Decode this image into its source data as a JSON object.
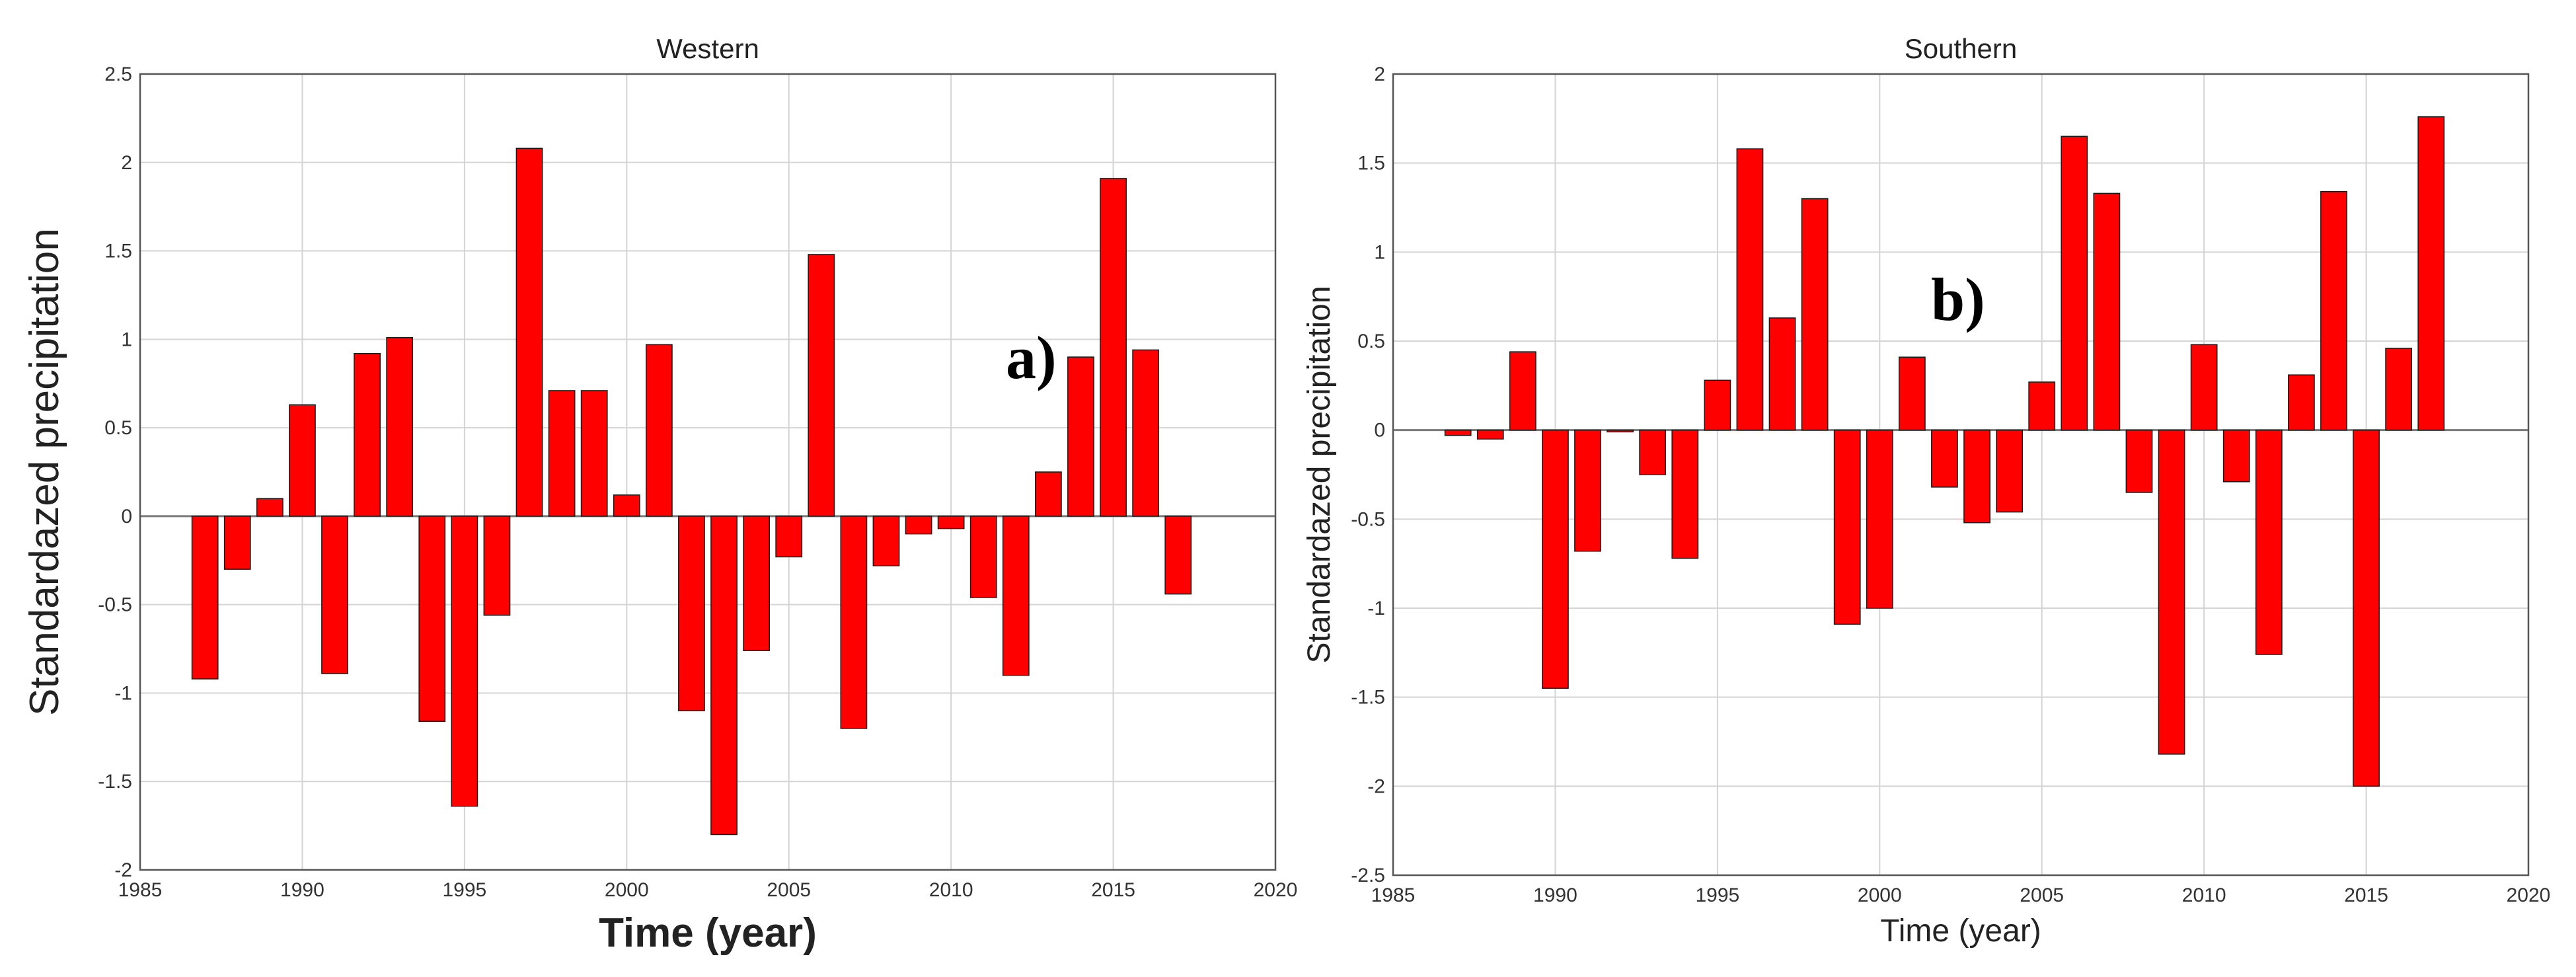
{
  "colors": {
    "bar": "#ff0000",
    "bar_edge": "#1a1a1a",
    "grid": "#d4d4d4",
    "axis": "#555555"
  },
  "chart_data": [
    {
      "type": "bar",
      "title": "Western",
      "xlabel": "Time (year)",
      "ylabel": "Standardazed precipitation",
      "panel_tag": "a)",
      "xlim": [
        1985,
        2020
      ],
      "ylim": [
        -2,
        2.5
      ],
      "xticks": [
        1985,
        1990,
        1995,
        2000,
        2005,
        2010,
        2015,
        2020
      ],
      "yticks": [
        -2,
        -1.5,
        -1,
        -0.5,
        0,
        0.5,
        1,
        1.5,
        2,
        2.5
      ],
      "xtick_labels": [
        "1985",
        "1990",
        "1995",
        "2000",
        "2005",
        "2010",
        "2015",
        "2020"
      ],
      "ytick_labels": [
        "-2",
        "-1.5",
        "-1",
        "-0.5",
        "0",
        "0.5",
        "1",
        "1.5",
        "2",
        "2.5"
      ],
      "grid": true,
      "x": [
        1987,
        1988,
        1989,
        1990,
        1991,
        1992,
        1993,
        1994,
        1995,
        1996,
        1997,
        1998,
        1999,
        2000,
        2001,
        2002,
        2003,
        2004,
        2005,
        2006,
        2007,
        2008,
        2009,
        2010,
        2011,
        2012,
        2013,
        2014,
        2015,
        2016,
        2017
      ],
      "values": [
        -0.92,
        -0.3,
        0.1,
        0.63,
        -0.89,
        0.92,
        1.01,
        -1.16,
        -1.64,
        -0.56,
        2.08,
        0.71,
        0.71,
        0.12,
        0.97,
        -1.1,
        -1.8,
        -0.76,
        -0.23,
        1.48,
        -1.2,
        -0.28,
        -0.1,
        -0.07,
        -0.46,
        -0.9,
        0.25,
        0.9,
        1.91,
        0.94,
        -0.44
      ]
    },
    {
      "type": "bar",
      "title": "Southern",
      "xlabel": "Time (year)",
      "ylabel": "Standardazed precipitation",
      "panel_tag": "b)",
      "xlim": [
        1985,
        2020
      ],
      "ylim": [
        -2.5,
        2
      ],
      "xticks": [
        1985,
        1990,
        1995,
        2000,
        2005,
        2010,
        2015,
        2020
      ],
      "yticks": [
        -2.5,
        -2,
        -1.5,
        -1,
        -0.5,
        0,
        0.5,
        1,
        1.5,
        2
      ],
      "xtick_labels": [
        "1985",
        "1990",
        "1995",
        "2000",
        "2005",
        "2010",
        "2015",
        "2020"
      ],
      "ytick_labels": [
        "-2.5",
        "-2",
        "-1.5",
        "-1",
        "-0.5",
        "0",
        "0.5",
        "1",
        "1.5",
        "2"
      ],
      "grid": true,
      "x": [
        1987,
        1988,
        1989,
        1990,
        1991,
        1992,
        1993,
        1994,
        1995,
        1996,
        1997,
        1998,
        1999,
        2000,
        2001,
        2002,
        2003,
        2004,
        2005,
        2006,
        2007,
        2008,
        2009,
        2010,
        2011,
        2012,
        2013,
        2014,
        2015,
        2016,
        2017
      ],
      "values": [
        -0.03,
        -0.05,
        0.44,
        -1.45,
        -0.68,
        -0.01,
        -0.25,
        -0.72,
        0.28,
        1.58,
        0.63,
        1.3,
        -1.09,
        -1.0,
        0.41,
        -0.32,
        -0.52,
        -0.46,
        0.27,
        1.65,
        1.33,
        -0.35,
        -1.82,
        0.48,
        -0.29,
        -1.26,
        0.31,
        1.34,
        -2.0,
        0.46,
        1.76
      ]
    }
  ]
}
